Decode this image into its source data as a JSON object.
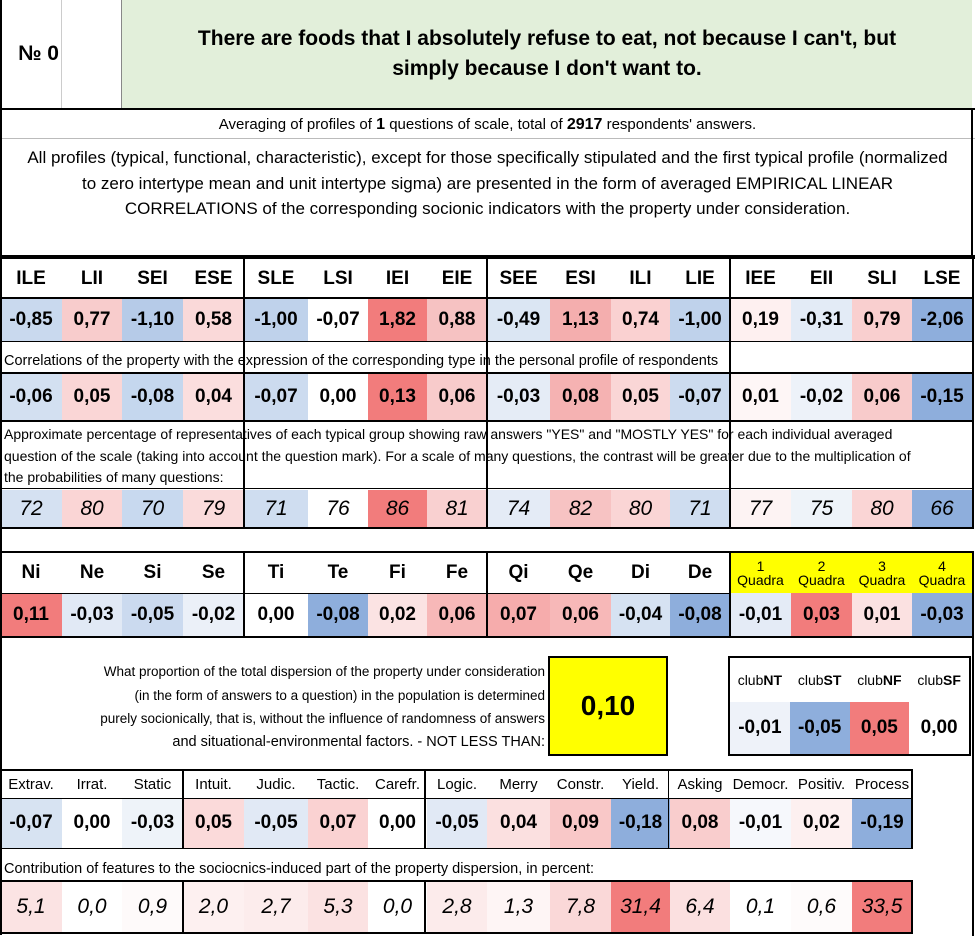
{
  "header": {
    "number_label": "№ 0",
    "question": "There are foods that I absolutely refuse to eat, not because I can't, but simply because I don't want to."
  },
  "averaging": {
    "prefix": "Averaging of profiles of ",
    "questions": "1",
    "middle": " questions of scale, total of ",
    "respondents": "2917",
    "suffix": " respondents' answers."
  },
  "description": "All profiles (typical, functional, characteristic), except for those specifically stipulated and the first typical profile (normalized to zero intertype mean and unit intertype sigma) are presented in the form of averaged EMPIRICAL LINEAR CORRELATIONS of the corresponding socionic indicators with the property under consideration.",
  "types": {
    "headers": [
      "ILE",
      "LII",
      "SEI",
      "ESE",
      "SLE",
      "LSI",
      "IEI",
      "EIE",
      "SEE",
      "ESI",
      "ILI",
      "LIE",
      "IEE",
      "EII",
      "SLI",
      "LSE"
    ],
    "profile": [
      "-0,85",
      "0,77",
      "-1,10",
      "0,58",
      "-1,00",
      "-0,07",
      "1,82",
      "0,88",
      "-0,49",
      "1,13",
      "0,74",
      "-1,00",
      "0,19",
      "-0,31",
      "0,79",
      "-2,06"
    ],
    "profile_colors": [
      "#c9d9ee",
      "#f8cccc",
      "#b6cbe8",
      "#fad9d9",
      "#bfd2eb",
      "#ffffff",
      "#f27c7c",
      "#f6c2c2",
      "#dbe6f3",
      "#f4aeae",
      "#fad1d1",
      "#bfd2eb",
      "#fef0f0",
      "#e3ebf6",
      "#f9cfcf",
      "#8eaedc"
    ],
    "correlation_note": "Correlations of the property with the expression of the corresponding type in the personal profile of respondents",
    "correlations": [
      "-0,06",
      "0,05",
      "-0,08",
      "0,04",
      "-0,07",
      "0,00",
      "0,13",
      "0,06",
      "-0,03",
      "0,08",
      "0,05",
      "-0,07",
      "0,01",
      "-0,02",
      "0,06",
      "-0,15"
    ],
    "correlation_colors": [
      "#d3e0f1",
      "#fad6d6",
      "#c5d7ee",
      "#fbdede",
      "#ccdbef",
      "#ffffff",
      "#f27c7c",
      "#f8cbcb",
      "#e5ecf6",
      "#f5b2b2",
      "#fad6d6",
      "#ccdbef",
      "#fef6f6",
      "#edf2f9",
      "#f8cbcb",
      "#8eaedc"
    ],
    "percent_note": "Approximate percentage of representatives of each typical group showing raw answers \"YES\" and \"MOSTLY YES\" for each individual averaged question of the scale (taking into account the question mark). For a scale of many questions, the contrast will be greater due to the multiplication of the probabilities of many questions:",
    "percentages": [
      "72",
      "80",
      "70",
      "79",
      "71",
      "76",
      "86",
      "81",
      "74",
      "82",
      "80",
      "71",
      "77",
      "75",
      "80",
      "66"
    ],
    "percent_colors": [
      "#d5e1f2",
      "#fad5d5",
      "#c8d9ef",
      "#fadbdb",
      "#cfddf0",
      "#ffffff",
      "#f27c7c",
      "#f9d0d0",
      "#e4ebf6",
      "#f7c3c3",
      "#fad5d5",
      "#cfddf0",
      "#fdf3f3",
      "#eef3f9",
      "#fad5d5",
      "#8eaedc"
    ]
  },
  "functions": {
    "headers": [
      "Ni",
      "Ne",
      "Si",
      "Se",
      "Ti",
      "Te",
      "Fi",
      "Fe",
      "Qi",
      "Qe",
      "Di",
      "De"
    ],
    "values": [
      "0,11",
      "-0,03",
      "-0,05",
      "-0,02",
      "0,00",
      "-0,08",
      "0,02",
      "0,06",
      "0,07",
      "0,06",
      "-0,04",
      "-0,08"
    ],
    "colors": [
      "#f27c7c",
      "#e1e9f5",
      "#cbdaef",
      "#ebf0f8",
      "#ffffff",
      "#8eaedc",
      "#fbe3e3",
      "#f7b8b8",
      "#f6acac",
      "#f7b8b8",
      "#d6e2f2",
      "#8eaedc"
    ],
    "quadra_numbers": [
      "1",
      "2",
      "3",
      "4"
    ],
    "quadra_word": "Quadra",
    "quadra_values": [
      "-0,01",
      "0,03",
      "0,01",
      "-0,03"
    ],
    "quadra_colors": [
      "#e4ebf6",
      "#f27c7c",
      "#fbe1e1",
      "#8eaedc"
    ]
  },
  "dispersion": {
    "text_lines": [
      "What proportion of the total dispersion of the property under consideration",
      "(in the form of answers to a question) in the population is determined",
      "purely socionically, that is, without the influence of randomness of answers",
      "and situational-environmental factors. - NOT LESS THAN:"
    ],
    "value": "0,10"
  },
  "clubs": {
    "prefix": "club",
    "names": [
      "NT",
      "ST",
      "NF",
      "SF"
    ],
    "values": [
      "-0,01",
      "-0,05",
      "0,05",
      "0,00"
    ],
    "colors": [
      "#eef2f9",
      "#8eaedc",
      "#f27c7c",
      "#ffffff"
    ]
  },
  "features": {
    "headers": [
      "Extrav.",
      "Irrat.",
      "Static",
      "Intuit.",
      "Judic.",
      "Tactic.",
      "Carefr.",
      "Logic.",
      "Merry",
      "Constr.",
      "Yield.",
      "Asking",
      "Democr.",
      "Positiv.",
      "Process"
    ],
    "values": [
      "-0,07",
      "0,00",
      "-0,03",
      "0,05",
      "-0,05",
      "0,07",
      "0,00",
      "-0,05",
      "0,04",
      "0,09",
      "-0,18",
      "0,08",
      "-0,01",
      "0,02",
      "-0,19"
    ],
    "colors": [
      "#d7e3f2",
      "#ffffff",
      "#eef3f9",
      "#fbdada",
      "#e1e9f5",
      "#fad2d2",
      "#ffffff",
      "#e1e9f5",
      "#fbe0e0",
      "#f9c8c8",
      "#8eaedc",
      "#f9cdcd",
      "#f6f8fc",
      "#fdf0f0",
      "#8eaedc"
    ],
    "contribution_note": "Contribution of features to the sociocnics-induced part of the property dispersion, in percent:",
    "contributions": [
      "5,1",
      "0,0",
      "0,9",
      "2,0",
      "2,7",
      "5,3",
      "0,0",
      "2,8",
      "1,3",
      "7,8",
      "31,4",
      "6,4",
      "0,1",
      "0,6",
      "33,5"
    ],
    "contribution_colors": [
      "#fbe3e3",
      "#ffffff",
      "#fefafa",
      "#fdf0f0",
      "#fcecec",
      "#fbe2e2",
      "#ffffff",
      "#fcebeb",
      "#fef5f5",
      "#fad8d8",
      "#f27c7c",
      "#fbe0e0",
      "#ffffff",
      "#fefbfb",
      "#f27c7c"
    ]
  }
}
